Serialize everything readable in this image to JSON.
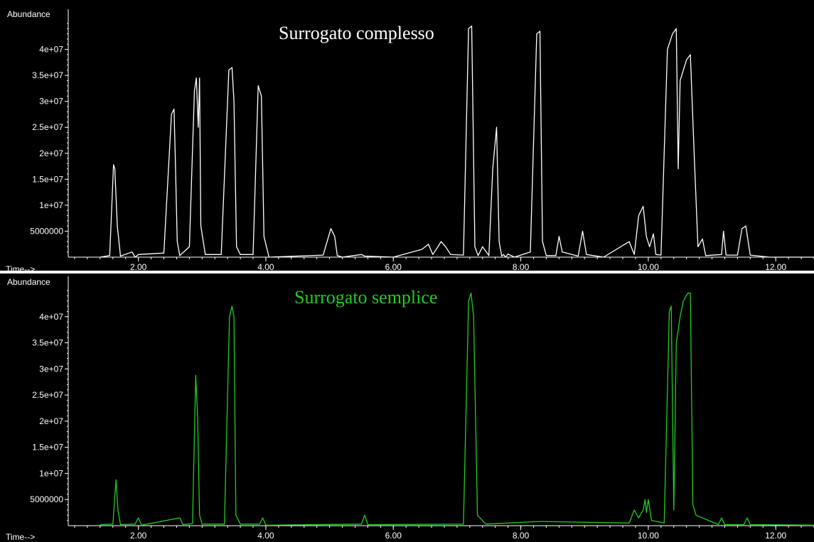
{
  "chart_data": [
    {
      "type": "line",
      "title": "Surrogato complesso",
      "title_color": "#ffffff",
      "trace_color": "#ffffff",
      "ylabel": "Abundance",
      "xlabel": "Time-->",
      "xlim": [
        0.9,
        12.6
      ],
      "ylim": [
        0,
        45000000
      ],
      "x_ticks": [
        2.0,
        4.0,
        6.0,
        8.0,
        10.0,
        12.0
      ],
      "x_tick_labels": [
        "2.00",
        "4.00",
        "6.00",
        "8.00",
        "10.00",
        "12.00"
      ],
      "y_ticks": [
        5000000,
        10000000,
        15000000,
        20000000,
        25000000,
        30000000,
        35000000,
        40000000
      ],
      "y_tick_labels": [
        "5000000",
        "1e+07",
        "1.5e+07",
        "2e+07",
        "2.5e+07",
        "3e+07",
        "3.5e+07",
        "4e+07"
      ],
      "series": [
        {
          "x": [
            1.4,
            1.55,
            1.61,
            1.63,
            1.67,
            1.72,
            1.9,
            1.95,
            2.0,
            2.4,
            2.52,
            2.56,
            2.58,
            2.61,
            2.65,
            2.8,
            2.88,
            2.91,
            2.94,
            2.96,
            2.98,
            3.05,
            3.3,
            3.42,
            3.47,
            3.5,
            3.54,
            3.6,
            3.8,
            3.88,
            3.93,
            3.97,
            4.05,
            4.9,
            5.02,
            5.08,
            5.12,
            5.2,
            5.5,
            5.55,
            6.0,
            6.45,
            6.55,
            6.62,
            6.7,
            6.75,
            6.82,
            6.9,
            7.1,
            7.18,
            7.23,
            7.28,
            7.33,
            7.4,
            7.5,
            7.56,
            7.62,
            7.66,
            7.7,
            7.73,
            7.76,
            7.8,
            7.9,
            8.15,
            8.25,
            8.3,
            8.34,
            8.4,
            8.55,
            8.6,
            8.65,
            8.9,
            8.97,
            9.03,
            9.3,
            9.7,
            9.78,
            9.85,
            9.92,
            9.97,
            10.02,
            10.08,
            10.12,
            10.2,
            10.3,
            10.38,
            10.44,
            10.47,
            10.5,
            10.55,
            10.6,
            10.66,
            10.72,
            10.78,
            10.85,
            10.9,
            11.15,
            11.18,
            11.22,
            11.4,
            11.47,
            11.53,
            11.6,
            11.9,
            12.6
          ],
          "y": [
            0,
            300000,
            17800000,
            17000000,
            6000000,
            200000,
            1000000,
            0,
            500000,
            800000,
            27500000,
            28500000,
            19000000,
            3000000,
            300000,
            2000000,
            32000000,
            34500000,
            25000000,
            34500000,
            6000000,
            500000,
            500000,
            36000000,
            36500000,
            30000000,
            2000000,
            500000,
            500000,
            33000000,
            31000000,
            4000000,
            0,
            400000,
            5500000,
            4000000,
            300000,
            0,
            500000,
            200000,
            0,
            1500000,
            2500000,
            500000,
            2000000,
            3000000,
            2000000,
            500000,
            400000,
            44000000,
            44500000,
            2000000,
            300000,
            2000000,
            300000,
            17000000,
            25000000,
            3000000,
            200000,
            500000,
            0,
            600000,
            0,
            1000000,
            43000000,
            43500000,
            3000000,
            300000,
            300000,
            4000000,
            1000000,
            200000,
            5000000,
            500000,
            0,
            3000000,
            500000,
            8000000,
            9800000,
            4000000,
            2000000,
            4500000,
            500000,
            400000,
            40000000,
            43000000,
            44000000,
            17000000,
            34000000,
            36000000,
            38000000,
            39000000,
            20000000,
            2000000,
            3500000,
            300000,
            500000,
            5000000,
            400000,
            400000,
            5500000,
            6000000,
            400000,
            0,
            0
          ]
        }
      ]
    },
    {
      "type": "line",
      "title": "Surrogato semplice",
      "title_color": "#22cc22",
      "trace_color": "#22cc22",
      "ylabel": "Abundance",
      "xlabel": "Time-->",
      "xlim": [
        0.9,
        12.6
      ],
      "ylim": [
        0,
        45000000
      ],
      "x_ticks": [
        2.0,
        4.0,
        6.0,
        8.0,
        10.0,
        12.0
      ],
      "x_tick_labels": [
        "2.00",
        "4.00",
        "6.00",
        "8.00",
        "10.00",
        "12.00"
      ],
      "y_ticks": [
        5000000,
        10000000,
        15000000,
        20000000,
        25000000,
        30000000,
        35000000,
        40000000
      ],
      "y_tick_labels": [
        "5000000",
        "1e+07",
        "1.5e+07",
        "2e+07",
        "2.5e+07",
        "3e+07",
        "3.5e+07",
        "4e+07"
      ],
      "series": [
        {
          "x": [
            1.4,
            1.6,
            1.65,
            1.68,
            1.72,
            1.95,
            2.0,
            2.05,
            2.65,
            2.7,
            2.85,
            2.9,
            2.93,
            2.96,
            3.0,
            3.35,
            3.43,
            3.47,
            3.5,
            3.53,
            3.6,
            3.9,
            3.95,
            4.0,
            5.5,
            5.55,
            5.6,
            7.1,
            7.18,
            7.22,
            7.26,
            7.32,
            7.45,
            8.3,
            9.7,
            9.78,
            9.85,
            9.92,
            9.95,
            9.97,
            10.0,
            10.05,
            10.25,
            10.33,
            10.36,
            10.4,
            10.44,
            10.5,
            10.55,
            10.62,
            10.66,
            10.7,
            10.75,
            11.1,
            11.15,
            11.2,
            11.5,
            11.55,
            11.6,
            12.6
          ],
          "y": [
            200000,
            300000,
            8800000,
            3000000,
            200000,
            300000,
            1500000,
            100000,
            1500000,
            200000,
            400000,
            28800000,
            21000000,
            2000000,
            300000,
            300000,
            40000000,
            42000000,
            40000000,
            2000000,
            300000,
            300000,
            1500000,
            100000,
            300000,
            2000000,
            200000,
            300000,
            43000000,
            44500000,
            40000000,
            2000000,
            300000,
            800000,
            500000,
            3000000,
            1500000,
            3000000,
            5000000,
            2500000,
            5000000,
            1000000,
            500000,
            41000000,
            42000000,
            3000000,
            35000000,
            40000000,
            43000000,
            44500000,
            44500000,
            4000000,
            2000000,
            200000,
            1500000,
            200000,
            200000,
            1500000,
            200000,
            100000
          ]
        }
      ]
    }
  ]
}
